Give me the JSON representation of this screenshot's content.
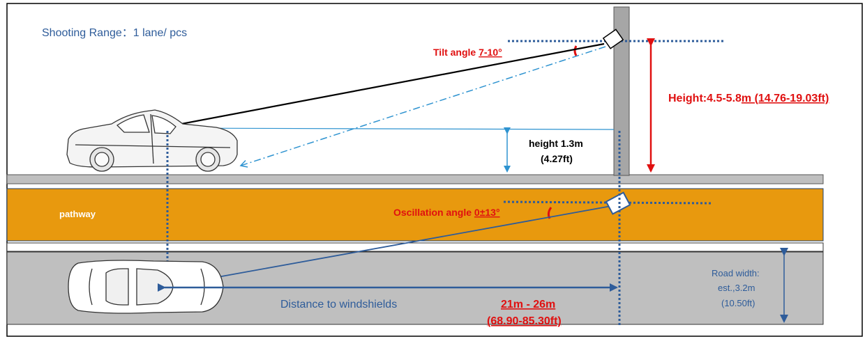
{
  "title": "Shooting Range：1 lane/ pcs",
  "top_view": {
    "tilt_prefix": "Tilt angle ",
    "tilt_value": "7-10°",
    "height_prefix": "Height:4.5-5.8",
    "height_value": "m (14.76-19.03ft)",
    "car_height_line1": "height 1.3m",
    "car_height_line2": "(4.27ft)"
  },
  "road_view": {
    "pathway_label": "pathway",
    "oscillation_prefix": "Oscillation angle ",
    "oscillation_value": "0±13°",
    "distance_label": "Distance to windshields",
    "distance_m": "21m - 26m",
    "distance_ft": "(68.90-85.30ft)",
    "road_width_line1": "Road width:",
    "road_width_line2": "est.,3.2m",
    "road_width_line3": "(10.50ft)"
  },
  "colors": {
    "blue_text": "#2e5c9a",
    "red_text": "#e01010",
    "pathway": "#e8990e",
    "road": "#bfbfbf",
    "pole": "#a6a6a6",
    "dotted_blue": "#2e5c9a",
    "light_blue": "#2e93d0"
  }
}
